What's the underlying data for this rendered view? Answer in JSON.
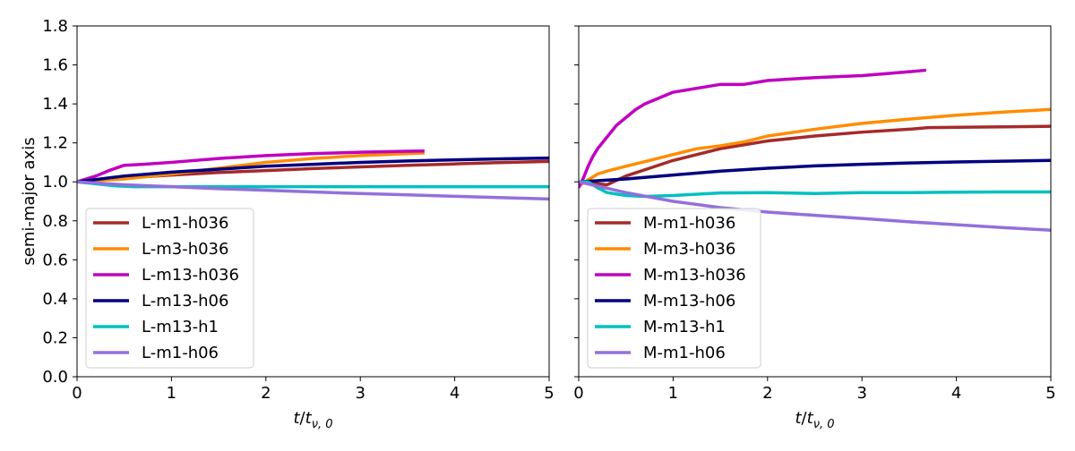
{
  "colors": {
    "brown": "#a52a2a",
    "orange": "#ff8c00",
    "magenta": "#c000c0",
    "navy": "#000080",
    "cyan": "#00c0c0",
    "lavender": "#9370db"
  },
  "chart_data": [
    {
      "type": "line",
      "panel": "left",
      "xlabel": "t/t_ν,0",
      "xlabel_main": "t",
      "xlabel_den": "t",
      "xlabel_sub": "ν, 0",
      "ylabel": "semi-major axis",
      "xlim": [
        0,
        5
      ],
      "ylim": [
        0,
        1.8
      ],
      "xticks": [
        "0",
        "1",
        "2",
        "3",
        "4",
        "5"
      ],
      "yticks": [
        "0.0",
        "0.2",
        "0.4",
        "0.6",
        "0.8",
        "1.0",
        "1.2",
        "1.4",
        "1.6",
        "1.8"
      ],
      "legend_position": "lower-left",
      "series": [
        {
          "name": "L-m1-h036",
          "color": "#a52a2a",
          "x": [
            0,
            0.5,
            1,
            1.5,
            2,
            2.5,
            3,
            3.5,
            4,
            4.5,
            5
          ],
          "y": [
            1.0,
            1.02,
            1.035,
            1.048,
            1.058,
            1.068,
            1.077,
            1.085,
            1.092,
            1.099,
            1.105
          ]
        },
        {
          "name": "L-m3-h036",
          "color": "#ff8c00",
          "x": [
            0,
            0.5,
            1,
            1.5,
            2,
            2.5,
            3,
            3.5,
            3.68
          ],
          "y": [
            1.0,
            1.015,
            1.04,
            1.07,
            1.1,
            1.12,
            1.135,
            1.145,
            1.148
          ]
        },
        {
          "name": "L-m13-h036",
          "color": "#c000c0",
          "x": [
            0,
            0.2,
            0.35,
            0.5,
            0.7,
            1,
            1.5,
            2,
            2.5,
            3,
            3.5,
            3.68
          ],
          "y": [
            1.0,
            1.03,
            1.06,
            1.085,
            1.09,
            1.1,
            1.12,
            1.135,
            1.145,
            1.152,
            1.157,
            1.158
          ]
        },
        {
          "name": "L-m13-h06",
          "color": "#000080",
          "x": [
            0,
            0.5,
            1,
            1.5,
            2,
            2.5,
            3,
            3.5,
            4,
            4.5,
            5
          ],
          "y": [
            1.0,
            1.03,
            1.05,
            1.065,
            1.08,
            1.09,
            1.1,
            1.107,
            1.113,
            1.118,
            1.122
          ]
        },
        {
          "name": "L-m13-h1",
          "color": "#00c0c0",
          "x": [
            0,
            0.2,
            0.4,
            0.6,
            1,
            2,
            3,
            4,
            5
          ],
          "y": [
            1.0,
            0.99,
            0.98,
            0.975,
            0.975,
            0.975,
            0.975,
            0.975,
            0.975
          ]
        },
        {
          "name": "L-m1-h06",
          "color": "#9370db",
          "x": [
            0,
            0.5,
            1,
            1.5,
            2,
            2.5,
            3,
            3.5,
            4,
            4.5,
            5
          ],
          "y": [
            1.0,
            0.985,
            0.975,
            0.965,
            0.957,
            0.948,
            0.94,
            0.933,
            0.926,
            0.919,
            0.912
          ]
        }
      ]
    },
    {
      "type": "line",
      "panel": "right",
      "xlabel": "t/t_ν,0",
      "xlabel_main": "t",
      "xlabel_den": "t",
      "xlabel_sub": "ν, 0",
      "ylabel": "",
      "xlim": [
        0,
        5
      ],
      "ylim": [
        0,
        1.8
      ],
      "xticks": [
        "0",
        "1",
        "2",
        "3",
        "4",
        "5"
      ],
      "legend_position": "lower-left",
      "series": [
        {
          "name": "M-m1-h036",
          "color": "#a52a2a",
          "x": [
            0,
            0.1,
            0.2,
            0.3,
            0.5,
            0.75,
            1,
            1.5,
            2,
            2.5,
            3,
            3.5,
            3.7,
            4,
            4.5,
            5
          ],
          "y": [
            1.0,
            1.0,
            0.99,
            0.985,
            1.03,
            1.07,
            1.11,
            1.17,
            1.21,
            1.235,
            1.255,
            1.27,
            1.278,
            1.28,
            1.282,
            1.285
          ]
        },
        {
          "name": "M-m3-h036",
          "color": "#ff8c00",
          "x": [
            0,
            0.1,
            0.2,
            0.3,
            0.5,
            0.75,
            1,
            1.25,
            1.5,
            1.75,
            2,
            2.5,
            3,
            3.5,
            4,
            4.5,
            5
          ],
          "y": [
            0.98,
            1.01,
            1.04,
            1.055,
            1.08,
            1.11,
            1.14,
            1.17,
            1.185,
            1.205,
            1.235,
            1.27,
            1.3,
            1.322,
            1.342,
            1.358,
            1.372
          ]
        },
        {
          "name": "M-m13-h036",
          "color": "#c000c0",
          "x": [
            0,
            0.05,
            0.1,
            0.15,
            0.2,
            0.25,
            0.3,
            0.35,
            0.4,
            0.5,
            0.6,
            0.7,
            0.8,
            1,
            1.25,
            1.5,
            1.75,
            2,
            2.5,
            3,
            3.25,
            3.5,
            3.68
          ],
          "y": [
            0.97,
            1.02,
            1.08,
            1.13,
            1.17,
            1.2,
            1.23,
            1.26,
            1.29,
            1.33,
            1.37,
            1.4,
            1.42,
            1.46,
            1.48,
            1.5,
            1.5,
            1.52,
            1.535,
            1.545,
            1.555,
            1.565,
            1.573
          ]
        },
        {
          "name": "M-m13-h06",
          "color": "#000080",
          "x": [
            0,
            0.5,
            1,
            1.5,
            2,
            2.5,
            3,
            3.5,
            4,
            4.5,
            5
          ],
          "y": [
            1.0,
            1.015,
            1.035,
            1.055,
            1.07,
            1.082,
            1.09,
            1.097,
            1.102,
            1.106,
            1.11
          ]
        },
        {
          "name": "M-m13-h1",
          "color": "#00c0c0",
          "x": [
            0,
            0.1,
            0.2,
            0.3,
            0.5,
            0.7,
            1,
            1.5,
            2,
            2.5,
            3,
            3.5,
            4,
            4.5,
            5
          ],
          "y": [
            1.0,
            1.0,
            0.97,
            0.945,
            0.93,
            0.925,
            0.93,
            0.943,
            0.945,
            0.94,
            0.945,
            0.945,
            0.947,
            0.948,
            0.948
          ]
        },
        {
          "name": "M-m1-h06",
          "color": "#9370db",
          "x": [
            0,
            0.5,
            1,
            1.5,
            2,
            2.5,
            3,
            3.5,
            4,
            4.5,
            5
          ],
          "y": [
            1.0,
            0.945,
            0.9,
            0.868,
            0.845,
            0.828,
            0.812,
            0.795,
            0.78,
            0.765,
            0.752
          ]
        }
      ]
    }
  ]
}
